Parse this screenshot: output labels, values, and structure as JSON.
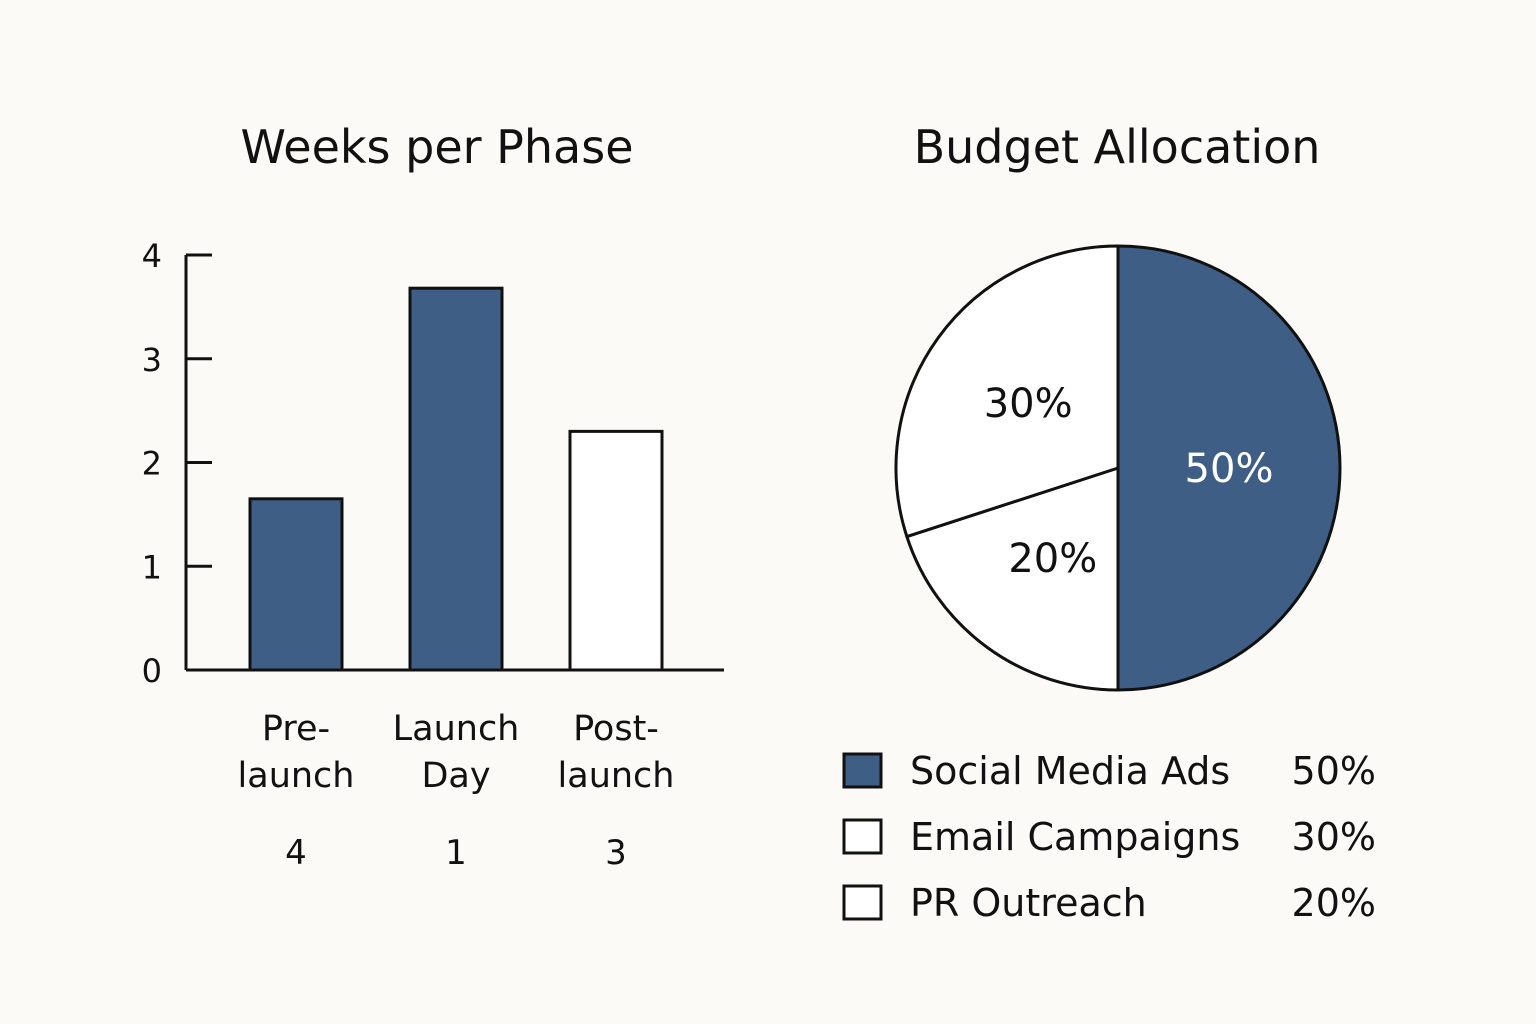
{
  "chart_data": [
    {
      "type": "bar",
      "title": "Weeks per Phase",
      "xlabel": "",
      "ylabel": "",
      "ylim": [
        0,
        4
      ],
      "yticks": [
        "0",
        "1",
        "2",
        "3",
        "4"
      ],
      "categories": [
        {
          "lines": [
            "Pre-",
            "launch"
          ],
          "value": 1.65,
          "label_below": "4",
          "filled": true
        },
        {
          "lines": [
            "Launch",
            "Day"
          ],
          "value": 3.68,
          "label_below": "1",
          "filled": true
        },
        {
          "lines": [
            "Post-",
            "launch"
          ],
          "value": 2.3,
          "label_below": "3",
          "filled": false
        }
      ],
      "fill_color": "#3e5e86",
      "empty_color": "#ffffff",
      "stroke_color": "#111111"
    },
    {
      "type": "pie",
      "title": "Budget Allocation",
      "slices": [
        {
          "name": "Social Media Ads",
          "value": 50,
          "label": "50%",
          "legend_value": "50%",
          "filled": true
        },
        {
          "name": "Email Campaigns",
          "value": 30,
          "label": "30%",
          "legend_value": "30%",
          "filled": false
        },
        {
          "name": "PR Outreach",
          "value": 20,
          "label": "20%",
          "legend_value": "20%",
          "filled": false
        }
      ],
      "slice_order_drawn": [
        "Social Media Ads",
        "PR Outreach",
        "Email Campaigns"
      ],
      "legend_placement": "bottom",
      "fill_color": "#3e5e86",
      "empty_color": "#ffffff",
      "stroke_color": "#111111",
      "filled_label_color": "#ffffff"
    }
  ]
}
